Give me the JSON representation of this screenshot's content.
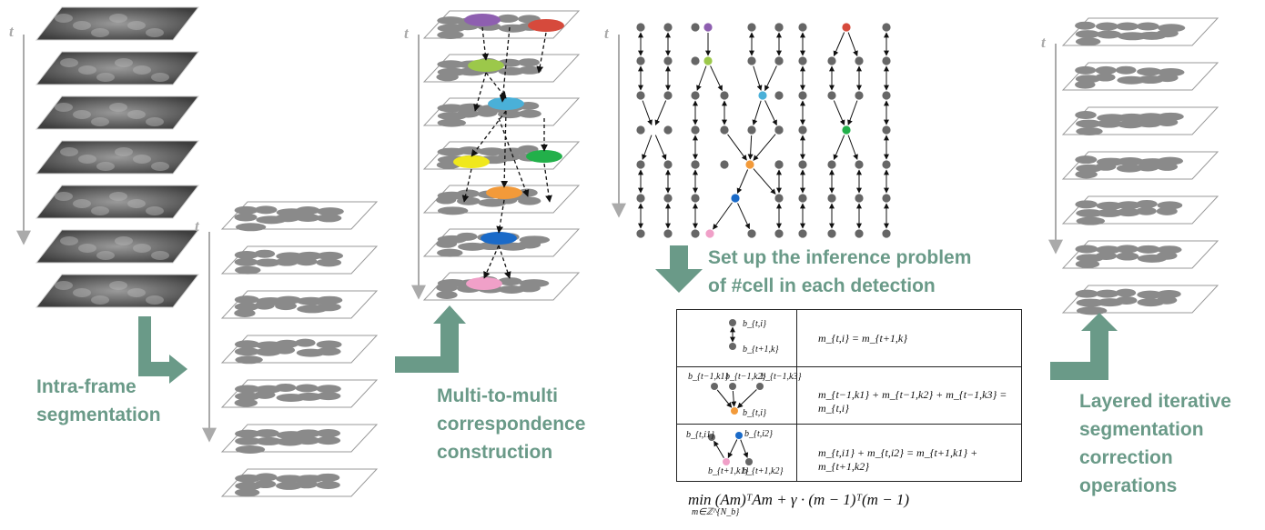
{
  "time_label": "t",
  "stage_labels": {
    "segmentation": [
      "Intra-frame",
      "segmentation"
    ],
    "correspondence": [
      "Multi-to-multi",
      "correspondence",
      "construction"
    ],
    "inference": [
      "Set up the inference problem",
      "of #cell in each detection"
    ],
    "correction": [
      "Layered iterative",
      "segmentation",
      "correction",
      "operations"
    ]
  },
  "table": {
    "rows": [
      {
        "nodes": [
          "b_{t,i}",
          "b_{t+1,k}"
        ],
        "equation": "m_{t,i} = m_{t+1,k}"
      },
      {
        "nodes": [
          "b_{t−1,k1}",
          "b_{t−1,k2}",
          "b_{t−1,k3}",
          "b_{t,i}"
        ],
        "equation": "m_{t−1,k1} + m_{t−1,k2} + m_{t−1,k3} = m_{t,i}"
      },
      {
        "nodes": [
          "b_{t,i1}",
          "b_{t,i2}",
          "b_{t+1,k1}",
          "b_{t+1,k2}"
        ],
        "equation": "m_{t,i1} + m_{t,i2} = m_{t+1,k1} + m_{t+1,k2}"
      }
    ]
  },
  "objective": "min (Am)ᵀAm + γ · (m − 1)ᵀ(m − 1)",
  "objective_sub": "m∈ℤ^{N_b}",
  "colors": {
    "accent": "#6a9a88",
    "purple": "#8e5fb0",
    "red": "#d64a3c",
    "green": "#9cc84a",
    "cyan": "#4ab0d8",
    "yellow": "#f0e81c",
    "dark_green": "#22b04a",
    "orange": "#f29a3a",
    "blue": "#1a6ac8",
    "pink": "#f0a0c8"
  }
}
